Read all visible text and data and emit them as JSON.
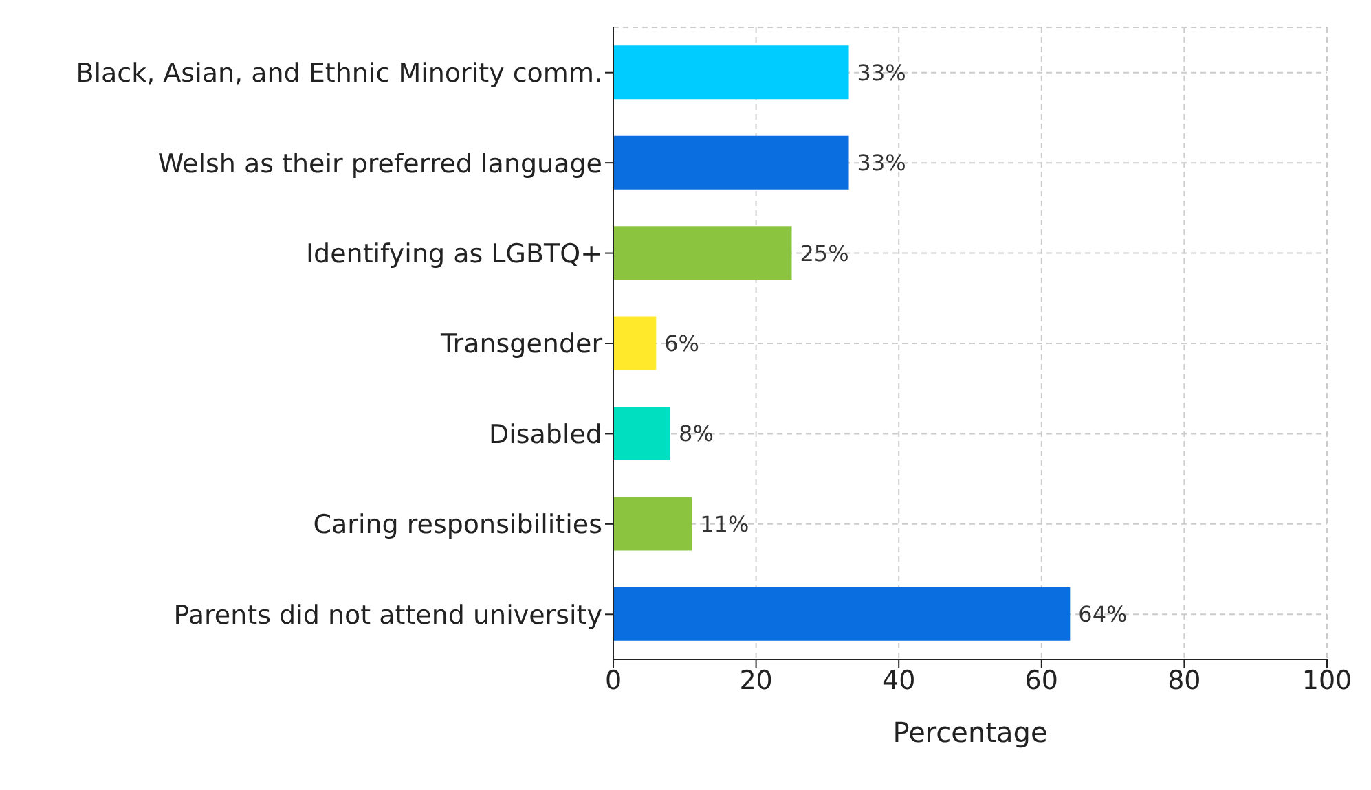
{
  "chart_data": {
    "type": "bar",
    "orientation": "horizontal",
    "xlabel": "Percentage",
    "categories": [
      "Black, Asian, and Ethnic Minority comm.",
      "Welsh as their preferred language",
      "Identifying as LGBTQ+",
      "Transgender",
      "Disabled",
      "Caring responsibilities",
      "Parents did not attend university"
    ],
    "values": [
      33,
      33,
      25,
      6,
      8,
      11,
      64
    ],
    "colors": [
      "#00ccff",
      "#0a6ee0",
      "#8bc43f",
      "#ffe92a",
      "#00e0c0",
      "#8bc43f",
      "#0a6ee0"
    ],
    "value_labels": [
      "33%",
      "33%",
      "25%",
      "6%",
      "8%",
      "11%",
      "64%"
    ],
    "xlim": [
      0,
      100
    ],
    "xticks": [
      0,
      20,
      40,
      60,
      80,
      100
    ],
    "grid": true
  }
}
